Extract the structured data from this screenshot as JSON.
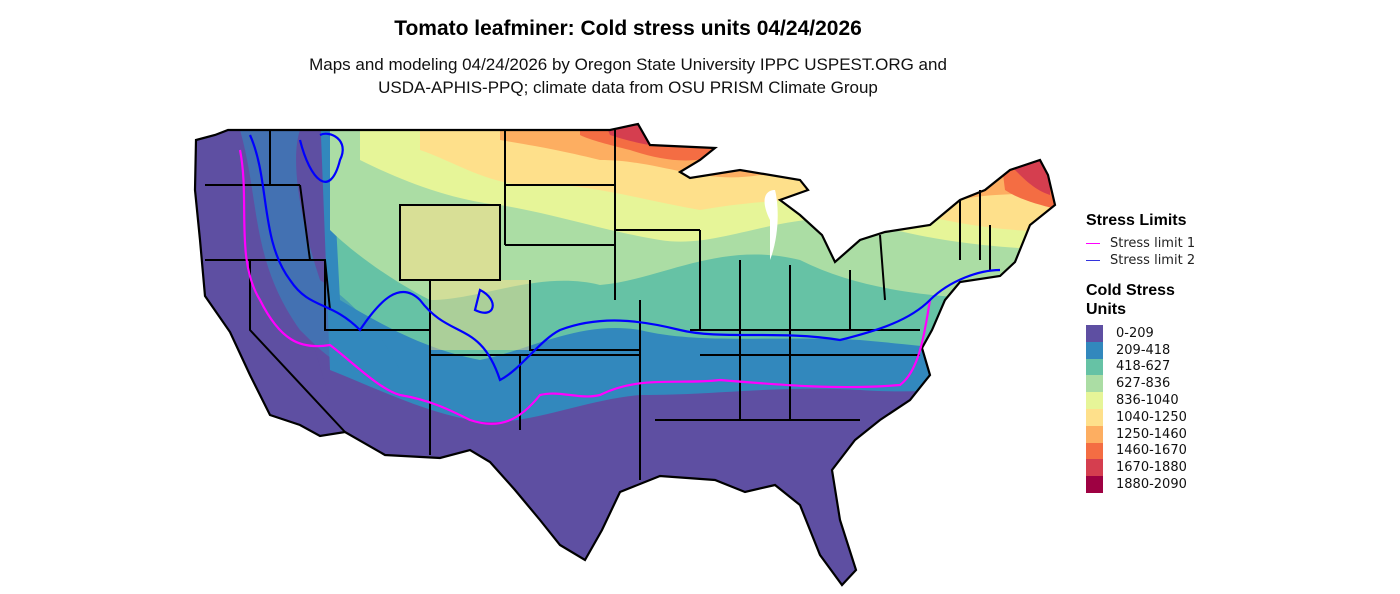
{
  "title": "Tomato leafminer: Cold stress units 04/24/2026",
  "subtitle_line1": "Maps and modeling 04/24/2026 by Oregon State University IPPC USPEST.ORG and",
  "subtitle_line2": "USDA-APHIS-PPQ; climate data from OSU PRISM Climate Group",
  "legend": {
    "stress_limits_title": "Stress Limits",
    "stress_limits": [
      {
        "label": "Stress limit 1",
        "color": "#FF00FF"
      },
      {
        "label": "Stress limit 2",
        "color": "#0000FF"
      }
    ],
    "units_title": "Cold Stress Units",
    "classes": [
      {
        "label": "0-209",
        "color": "#5E4FA2"
      },
      {
        "label": "209-418",
        "color": "#3288BD"
      },
      {
        "label": "418-627",
        "color": "#66C2A5"
      },
      {
        "label": "627-836",
        "color": "#ABDDA4"
      },
      {
        "label": "836-1040",
        "color": "#E6F598"
      },
      {
        "label": "1040-1250",
        "color": "#FEE08B"
      },
      {
        "label": "1250-1460",
        "color": "#FDAE61"
      },
      {
        "label": "1460-1670",
        "color": "#F46D43"
      },
      {
        "label": "1670-1880",
        "color": "#D53E4F"
      },
      {
        "label": "1880-2090",
        "color": "#9E0142"
      }
    ]
  }
}
